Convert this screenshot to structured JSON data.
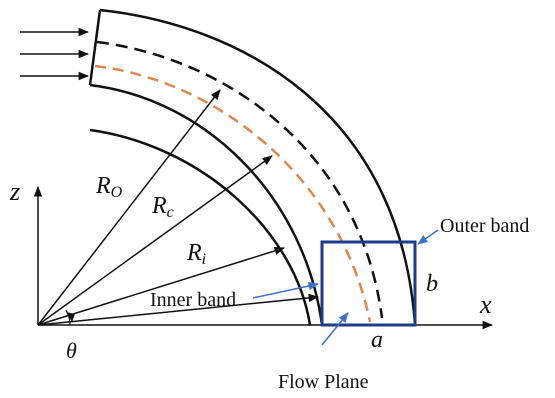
{
  "labels": {
    "outer_band": "Outer band",
    "inner_band": "Inner band",
    "flow_plane": "Flow Plane",
    "r_outer": "R",
    "r_outer_sub": "O",
    "r_center": "R",
    "r_center_sub": "c",
    "r_inner": "R",
    "r_inner_sub": "i",
    "axis_z": "z",
    "axis_x": "x",
    "theta": "θ",
    "dim_a": "a",
    "dim_b": "b"
  },
  "colors": {
    "stroke": "#111111",
    "box": "#1f3b8c",
    "pointer": "#3f6fd0",
    "centerline": "#111111",
    "flowline": "#e0874a"
  }
}
